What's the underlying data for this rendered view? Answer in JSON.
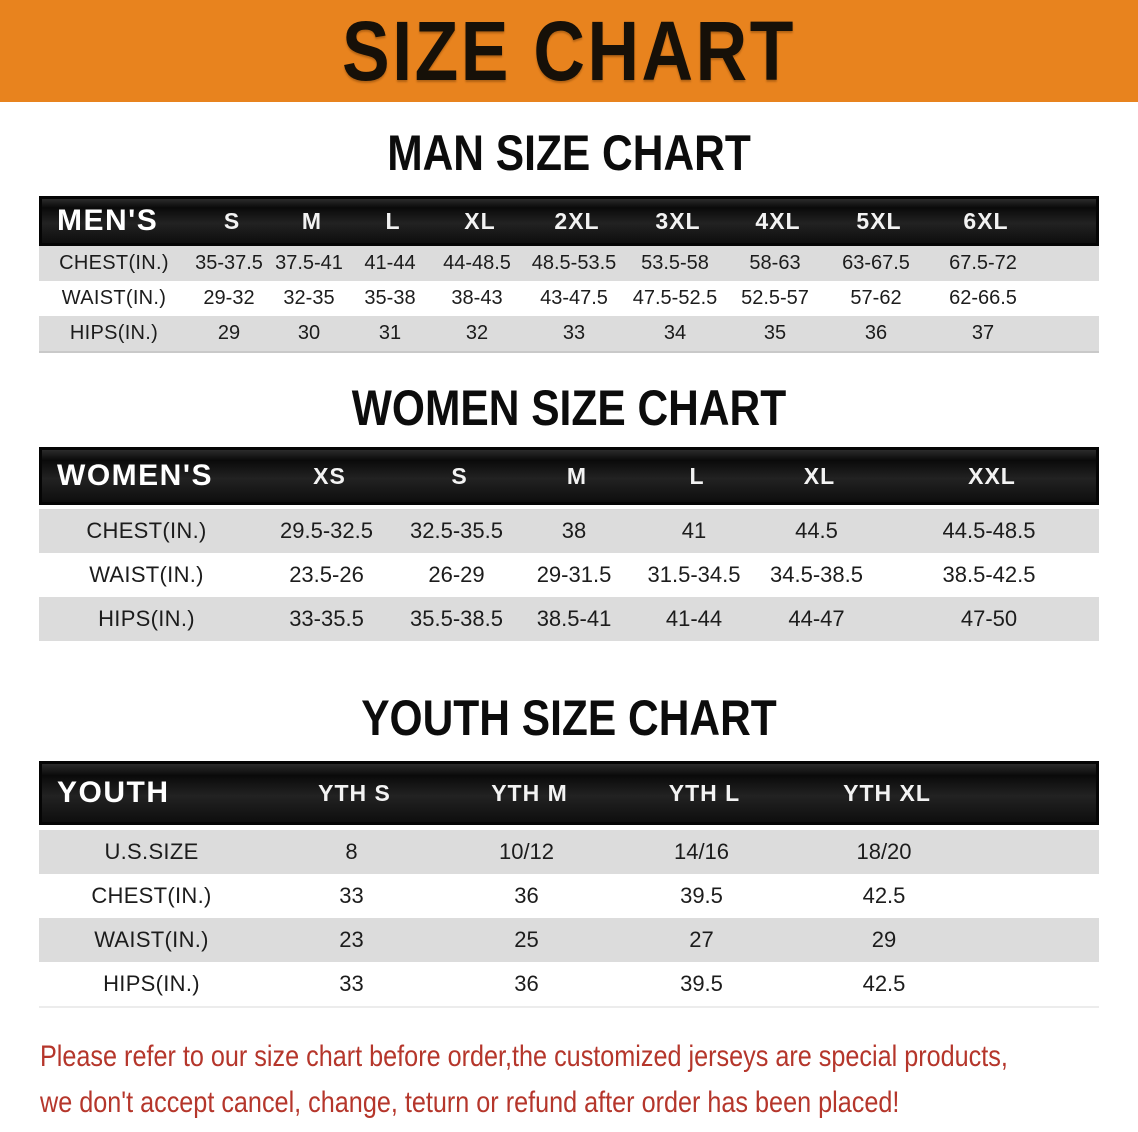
{
  "banner": {
    "title": "SIZE CHART",
    "bg_color": "#E8831E",
    "text_color": "#161008"
  },
  "sections": {
    "men": {
      "heading": "MAN SIZE CHART",
      "group_label": "MEN'S",
      "columns": [
        "S",
        "M",
        "L",
        "XL",
        "2XL",
        "3XL",
        "4XL",
        "5XL",
        "6XL"
      ],
      "rows": [
        {
          "label": "CHEST(IN.)",
          "values": [
            "35-37.5",
            "37.5-41",
            "41-44",
            "44-48.5",
            "48.5-53.5",
            "53.5-58",
            "58-63",
            "63-67.5",
            "67.5-72"
          ]
        },
        {
          "label": "WAIST(IN.)",
          "values": [
            "29-32",
            "32-35",
            "35-38",
            "38-43",
            "43-47.5",
            "47.5-52.5",
            "52.5-57",
            "57-62",
            "62-66.5"
          ]
        },
        {
          "label": "HIPS(IN.)",
          "values": [
            "29",
            "30",
            "31",
            "32",
            "33",
            "34",
            "35",
            "36",
            "37"
          ]
        }
      ]
    },
    "women": {
      "heading": "WOMEN SIZE CHART",
      "group_label": "WOMEN'S",
      "columns": [
        "XS",
        "S",
        "M",
        "L",
        "XL",
        "XXL"
      ],
      "rows": [
        {
          "label": "CHEST(IN.)",
          "values": [
            "29.5-32.5",
            "32.5-35.5",
            "38",
            "41",
            "44.5",
            "44.5-48.5"
          ]
        },
        {
          "label": "WAIST(IN.)",
          "values": [
            "23.5-26",
            "26-29",
            "29-31.5",
            "31.5-34.5",
            "34.5-38.5",
            "38.5-42.5"
          ]
        },
        {
          "label": "HIPS(IN.)",
          "values": [
            "33-35.5",
            "35.5-38.5",
            "38.5-41",
            "41-44",
            "44-47",
            "47-50"
          ]
        }
      ]
    },
    "youth": {
      "heading": "YOUTH SIZE CHART",
      "group_label": "YOUTH",
      "columns": [
        "YTH S",
        "YTH M",
        "YTH L",
        "YTH XL"
      ],
      "rows": [
        {
          "label": "U.S.SIZE",
          "values": [
            "8",
            "10/12",
            "14/16",
            "18/20"
          ]
        },
        {
          "label": "CHEST(IN.)",
          "values": [
            "33",
            "36",
            "39.5",
            "42.5"
          ]
        },
        {
          "label": "WAIST(IN.)",
          "values": [
            "23",
            "25",
            "27",
            "29"
          ]
        },
        {
          "label": "HIPS(IN.)",
          "values": [
            "33",
            "36",
            "39.5",
            "42.5"
          ]
        }
      ]
    }
  },
  "disclaimer": {
    "line1": "Please refer to our size chart before order,the customized jerseys are special products,",
    "line2": "we don't accept cancel, change, teturn or refund after order has been placed!",
    "text_color": "#B5362B"
  },
  "colors": {
    "header_bar": "#141414",
    "row_shade": "#DCDCDC",
    "banner_orange": "#E8831E",
    "disclaimer_red": "#B5362B"
  }
}
